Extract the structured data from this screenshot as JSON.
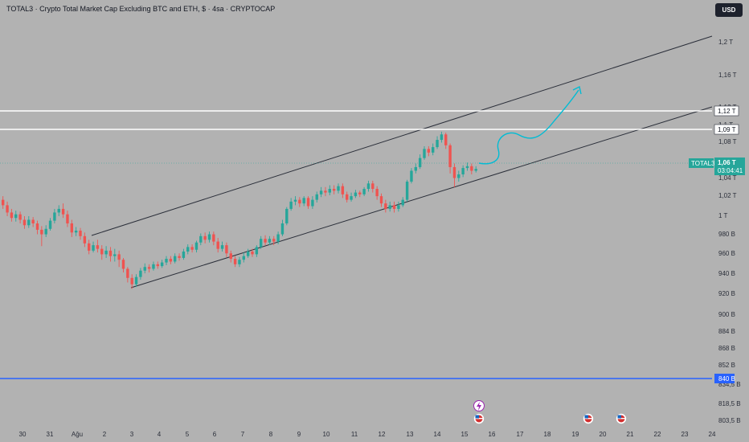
{
  "header": {
    "title": "TOTAL3 · Crypto Total Market Cap Excluding BTC and ETH, $ · 4sa · CRYPTOCAP",
    "currency": "USD"
  },
  "colors": {
    "background": "#b2b2b2",
    "up": "#26a69a",
    "down": "#ef5350",
    "channel": "#2a2e39",
    "hline": "#ffffff",
    "support": "#2962ff",
    "projection": "#00bcd4"
  },
  "chart_data": {
    "type": "candlestick",
    "symbol": "TOTAL3",
    "y_ticks": [
      "1,2 T",
      "1,16 T",
      "1,12 T",
      "1,1 T",
      "1,08 T",
      "1,04 T",
      "1,02 T",
      "1 T",
      "980 B",
      "960 B",
      "940 B",
      "920 B",
      "900 B",
      "884 B",
      "868 B",
      "852 B",
      "834,5 B",
      "818,5 B",
      "803,5 B"
    ],
    "x_ticks": [
      "30",
      "31",
      "Ağu",
      "2",
      "3",
      "4",
      "5",
      "6",
      "7",
      "8",
      "9",
      "10",
      "11",
      "12",
      "13",
      "14",
      "15",
      "16",
      "17",
      "18",
      "19",
      "20",
      "21",
      "22",
      "23",
      "24"
    ],
    "price_labels": {
      "h1": "1,12 T",
      "h2": "1,09 T",
      "support": "840 B",
      "current": "1,06 T",
      "countdown": "03:04:41",
      "symbol_tag": "TOTAL3"
    },
    "horizontal_levels": [
      "1,12 T",
      "1,09 T",
      "840 B"
    ],
    "current_price": "1,06 T",
    "candles": [
      {
        "o": 1026,
        "c": 1020,
        "h": 1030,
        "l": 1016
      },
      {
        "o": 1020,
        "c": 1012,
        "h": 1024,
        "l": 1008
      },
      {
        "o": 1012,
        "c": 1006,
        "h": 1016,
        "l": 1002
      },
      {
        "o": 1006,
        "c": 1010,
        "h": 1014,
        "l": 1002
      },
      {
        "o": 1010,
        "c": 1004,
        "h": 1013,
        "l": 1000
      },
      {
        "o": 1004,
        "c": 998,
        "h": 1008,
        "l": 994
      },
      {
        "o": 998,
        "c": 1004,
        "h": 1008,
        "l": 995
      },
      {
        "o": 1004,
        "c": 1000,
        "h": 1007,
        "l": 996
      },
      {
        "o": 1000,
        "c": 993,
        "h": 1003,
        "l": 988
      },
      {
        "o": 993,
        "c": 988,
        "h": 997,
        "l": 975
      },
      {
        "o": 988,
        "c": 994,
        "h": 998,
        "l": 985
      },
      {
        "o": 994,
        "c": 1003,
        "h": 1006,
        "l": 992
      },
      {
        "o": 1003,
        "c": 1012,
        "h": 1016,
        "l": 1000
      },
      {
        "o": 1012,
        "c": 1016,
        "h": 1020,
        "l": 1008
      },
      {
        "o": 1016,
        "c": 1010,
        "h": 1022,
        "l": 1006
      },
      {
        "o": 1010,
        "c": 1000,
        "h": 1014,
        "l": 996
      },
      {
        "o": 1000,
        "c": 990,
        "h": 1004,
        "l": 985
      },
      {
        "o": 990,
        "c": 992,
        "h": 996,
        "l": 986
      },
      {
        "o": 992,
        "c": 986,
        "h": 995,
        "l": 982
      },
      {
        "o": 986,
        "c": 978,
        "h": 990,
        "l": 974
      },
      {
        "o": 978,
        "c": 970,
        "h": 982,
        "l": 966
      },
      {
        "o": 970,
        "c": 976,
        "h": 980,
        "l": 968
      },
      {
        "o": 976,
        "c": 972,
        "h": 982,
        "l": 968
      },
      {
        "o": 972,
        "c": 966,
        "h": 976,
        "l": 960
      },
      {
        "o": 966,
        "c": 970,
        "h": 975,
        "l": 962
      },
      {
        "o": 970,
        "c": 964,
        "h": 974,
        "l": 958
      },
      {
        "o": 964,
        "c": 966,
        "h": 972,
        "l": 958
      },
      {
        "o": 966,
        "c": 960,
        "h": 970,
        "l": 952
      },
      {
        "o": 960,
        "c": 950,
        "h": 962,
        "l": 946
      },
      {
        "o": 950,
        "c": 940,
        "h": 952,
        "l": 935
      },
      {
        "o": 940,
        "c": 933,
        "h": 944,
        "l": 928
      },
      {
        "o": 933,
        "c": 941,
        "h": 944,
        "l": 930
      },
      {
        "o": 941,
        "c": 948,
        "h": 951,
        "l": 938
      },
      {
        "o": 948,
        "c": 952,
        "h": 956,
        "l": 945
      },
      {
        "o": 952,
        "c": 950,
        "h": 955,
        "l": 946
      },
      {
        "o": 950,
        "c": 955,
        "h": 958,
        "l": 948
      },
      {
        "o": 955,
        "c": 953,
        "h": 958,
        "l": 950
      },
      {
        "o": 953,
        "c": 957,
        "h": 960,
        "l": 951
      },
      {
        "o": 957,
        "c": 961,
        "h": 964,
        "l": 954
      },
      {
        "o": 961,
        "c": 958,
        "h": 964,
        "l": 955
      },
      {
        "o": 958,
        "c": 964,
        "h": 967,
        "l": 956
      },
      {
        "o": 964,
        "c": 962,
        "h": 967,
        "l": 959
      },
      {
        "o": 962,
        "c": 969,
        "h": 972,
        "l": 960
      },
      {
        "o": 969,
        "c": 974,
        "h": 977,
        "l": 966
      },
      {
        "o": 974,
        "c": 971,
        "h": 977,
        "l": 968
      },
      {
        "o": 971,
        "c": 979,
        "h": 981,
        "l": 968
      },
      {
        "o": 979,
        "c": 986,
        "h": 989,
        "l": 976
      },
      {
        "o": 986,
        "c": 982,
        "h": 990,
        "l": 978
      },
      {
        "o": 982,
        "c": 988,
        "h": 991,
        "l": 979
      },
      {
        "o": 988,
        "c": 980,
        "h": 991,
        "l": 976
      },
      {
        "o": 980,
        "c": 972,
        "h": 984,
        "l": 968
      },
      {
        "o": 972,
        "c": 976,
        "h": 980,
        "l": 969
      },
      {
        "o": 976,
        "c": 967,
        "h": 979,
        "l": 963
      },
      {
        "o": 967,
        "c": 961,
        "h": 970,
        "l": 957
      },
      {
        "o": 961,
        "c": 955,
        "h": 964,
        "l": 952
      },
      {
        "o": 955,
        "c": 960,
        "h": 963,
        "l": 952
      },
      {
        "o": 960,
        "c": 964,
        "h": 968,
        "l": 957
      },
      {
        "o": 964,
        "c": 969,
        "h": 972,
        "l": 962
      },
      {
        "o": 969,
        "c": 966,
        "h": 972,
        "l": 963
      },
      {
        "o": 966,
        "c": 974,
        "h": 976,
        "l": 963
      },
      {
        "o": 974,
        "c": 983,
        "h": 986,
        "l": 972
      },
      {
        "o": 983,
        "c": 979,
        "h": 987,
        "l": 976
      },
      {
        "o": 979,
        "c": 983,
        "h": 986,
        "l": 976
      },
      {
        "o": 983,
        "c": 980,
        "h": 986,
        "l": 976
      },
      {
        "o": 980,
        "c": 988,
        "h": 991,
        "l": 977
      },
      {
        "o": 988,
        "c": 1000,
        "h": 1004,
        "l": 986
      },
      {
        "o": 1000,
        "c": 1016,
        "h": 1018,
        "l": 998
      },
      {
        "o": 1016,
        "c": 1024,
        "h": 1028,
        "l": 1014
      },
      {
        "o": 1024,
        "c": 1026,
        "h": 1030,
        "l": 1020
      },
      {
        "o": 1026,
        "c": 1022,
        "h": 1029,
        "l": 1018
      },
      {
        "o": 1022,
        "c": 1028,
        "h": 1030,
        "l": 1019
      },
      {
        "o": 1028,
        "c": 1019,
        "h": 1030,
        "l": 1016
      },
      {
        "o": 1019,
        "c": 1026,
        "h": 1030,
        "l": 1016
      },
      {
        "o": 1026,
        "c": 1032,
        "h": 1035,
        "l": 1023
      },
      {
        "o": 1032,
        "c": 1036,
        "h": 1040,
        "l": 1029
      },
      {
        "o": 1036,
        "c": 1034,
        "h": 1040,
        "l": 1030
      },
      {
        "o": 1034,
        "c": 1038,
        "h": 1042,
        "l": 1031
      },
      {
        "o": 1038,
        "c": 1036,
        "h": 1042,
        "l": 1032
      },
      {
        "o": 1036,
        "c": 1041,
        "h": 1044,
        "l": 1033
      },
      {
        "o": 1041,
        "c": 1032,
        "h": 1044,
        "l": 1028
      },
      {
        "o": 1032,
        "c": 1026,
        "h": 1035,
        "l": 1023
      },
      {
        "o": 1026,
        "c": 1030,
        "h": 1034,
        "l": 1024
      },
      {
        "o": 1030,
        "c": 1034,
        "h": 1037,
        "l": 1028
      },
      {
        "o": 1034,
        "c": 1032,
        "h": 1036,
        "l": 1029
      },
      {
        "o": 1032,
        "c": 1038,
        "h": 1040,
        "l": 1030
      },
      {
        "o": 1038,
        "c": 1044,
        "h": 1047,
        "l": 1035
      },
      {
        "o": 1044,
        "c": 1038,
        "h": 1047,
        "l": 1034
      },
      {
        "o": 1038,
        "c": 1030,
        "h": 1041,
        "l": 1026
      },
      {
        "o": 1030,
        "c": 1022,
        "h": 1033,
        "l": 1018
      },
      {
        "o": 1022,
        "c": 1016,
        "h": 1026,
        "l": 1012
      },
      {
        "o": 1016,
        "c": 1020,
        "h": 1024,
        "l": 1013
      },
      {
        "o": 1020,
        "c": 1016,
        "h": 1024,
        "l": 1012
      },
      {
        "o": 1016,
        "c": 1020,
        "h": 1024,
        "l": 1013
      },
      {
        "o": 1020,
        "c": 1026,
        "h": 1029,
        "l": 1018
      },
      {
        "o": 1026,
        "c": 1046,
        "h": 1048,
        "l": 1024
      },
      {
        "o": 1046,
        "c": 1058,
        "h": 1061,
        "l": 1044
      },
      {
        "o": 1058,
        "c": 1062,
        "h": 1066,
        "l": 1055
      },
      {
        "o": 1062,
        "c": 1072,
        "h": 1076,
        "l": 1060
      },
      {
        "o": 1072,
        "c": 1082,
        "h": 1085,
        "l": 1070
      },
      {
        "o": 1082,
        "c": 1078,
        "h": 1085,
        "l": 1074
      },
      {
        "o": 1078,
        "c": 1084,
        "h": 1088,
        "l": 1075
      },
      {
        "o": 1084,
        "c": 1092,
        "h": 1096,
        "l": 1082
      },
      {
        "o": 1092,
        "c": 1098,
        "h": 1101,
        "l": 1089
      },
      {
        "o": 1098,
        "c": 1086,
        "h": 1100,
        "l": 1082
      },
      {
        "o": 1086,
        "c": 1062,
        "h": 1088,
        "l": 1055
      },
      {
        "o": 1062,
        "c": 1050,
        "h": 1066,
        "l": 1040
      },
      {
        "o": 1050,
        "c": 1054,
        "h": 1058,
        "l": 1046
      },
      {
        "o": 1054,
        "c": 1061,
        "h": 1064,
        "l": 1051
      },
      {
        "o": 1061,
        "c": 1063,
        "h": 1067,
        "l": 1058
      },
      {
        "o": 1063,
        "c": 1058,
        "h": 1066,
        "l": 1054
      },
      {
        "o": 1058,
        "c": 1060,
        "h": 1063,
        "l": 1056
      }
    ]
  }
}
